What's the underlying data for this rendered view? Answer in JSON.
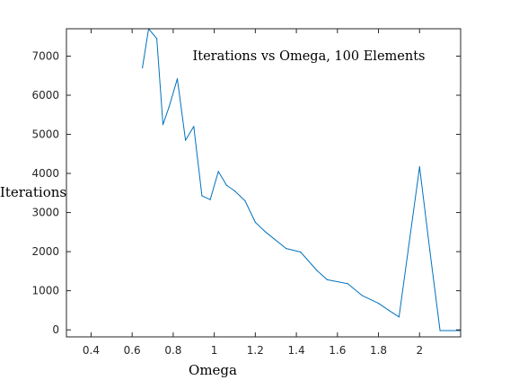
{
  "chart_data": {
    "type": "line",
    "title": "Iterations vs Omega, 100 Elements",
    "xlabel": "Omega",
    "ylabel": "Iterations",
    "xlim": [
      0.28,
      2.2
    ],
    "ylim": [
      -180,
      7700
    ],
    "x_ticks": [
      0.4,
      0.6,
      0.8,
      1,
      1.2,
      1.4,
      1.6,
      1.8,
      2
    ],
    "x_tick_labels": [
      "0.4",
      "0.6",
      "0.8",
      "1",
      "1.2",
      "1.4",
      "1.6",
      "1.8",
      "2"
    ],
    "y_ticks": [
      0,
      1000,
      2000,
      3000,
      4000,
      5000,
      6000,
      7000
    ],
    "y_tick_labels": [
      "0",
      "1000",
      "2000",
      "3000",
      "4000",
      "5000",
      "6000",
      "7000"
    ],
    "grid": false,
    "line_color": "#0072bd",
    "series": [
      {
        "x": [
          0.65,
          0.68,
          0.72,
          0.75,
          0.78,
          0.82,
          0.86,
          0.9,
          0.94,
          0.98,
          1.02,
          1.06,
          1.1,
          1.15,
          1.2,
          1.25,
          1.35,
          1.42,
          1.5,
          1.55,
          1.65,
          1.72,
          1.8,
          1.85,
          1.9,
          2.0,
          2.05,
          2.1,
          2.15,
          2.2
        ],
        "y": [
          6700,
          7700,
          7450,
          5250,
          5700,
          6420,
          4850,
          5200,
          3430,
          3330,
          4050,
          3700,
          3550,
          3300,
          2750,
          2500,
          2080,
          1990,
          1520,
          1280,
          1180,
          880,
          680,
          500,
          330,
          4170,
          2030,
          -20,
          -20,
          -20
        ]
      }
    ]
  }
}
